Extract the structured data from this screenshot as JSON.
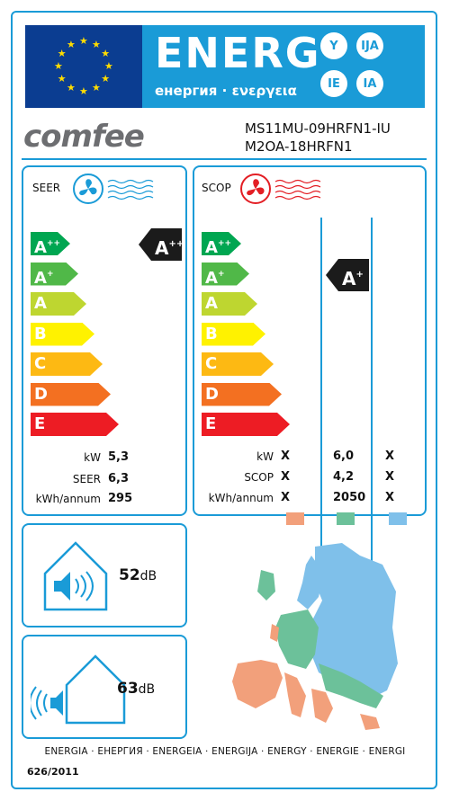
{
  "header": {
    "title": "ENERG",
    "subtitle": "енергия · ενεργεια",
    "languages": [
      "Y",
      "IJA",
      "IE",
      "IA"
    ]
  },
  "brand": "comfee",
  "models": [
    "MS11MU-09HRFN1-IU",
    "M2OA-18HRFN1"
  ],
  "scale": [
    "A++",
    "A+",
    "A",
    "B",
    "C",
    "D",
    "E"
  ],
  "scale_colors": [
    "#00a651",
    "#50b848",
    "#bed630",
    "#fff200",
    "#fdb913",
    "#f37021",
    "#ed1c24"
  ],
  "seer": {
    "label": "SEER",
    "rating": "A++",
    "rows": [
      {
        "label": "kW",
        "value": "5,3"
      },
      {
        "label": "SEER",
        "value": "6,3"
      },
      {
        "label": "kWh/annum",
        "value": "295"
      }
    ]
  },
  "scop": {
    "label": "SCOP",
    "rating": "A+",
    "rows": [
      {
        "label": "kW",
        "values": [
          "X",
          "6,0",
          "X"
        ]
      },
      {
        "label": "SCOP",
        "values": [
          "X",
          "4,2",
          "X"
        ]
      },
      {
        "label": "kWh/annum",
        "values": [
          "X",
          "2050",
          "X"
        ]
      }
    ],
    "zone_colors": [
      "#f2a07b",
      "#6cc19a",
      "#7fc0ea"
    ]
  },
  "noise": {
    "indoor_value": "52",
    "outdoor_value": "63",
    "unit": "dB"
  },
  "footer": {
    "languages": "ENERGIA · ЕНЕРГИЯ · ENERGEIA · ENERGIJA · ENERGY · ENERGIE · ENERGI",
    "regulation": "626/2011"
  }
}
